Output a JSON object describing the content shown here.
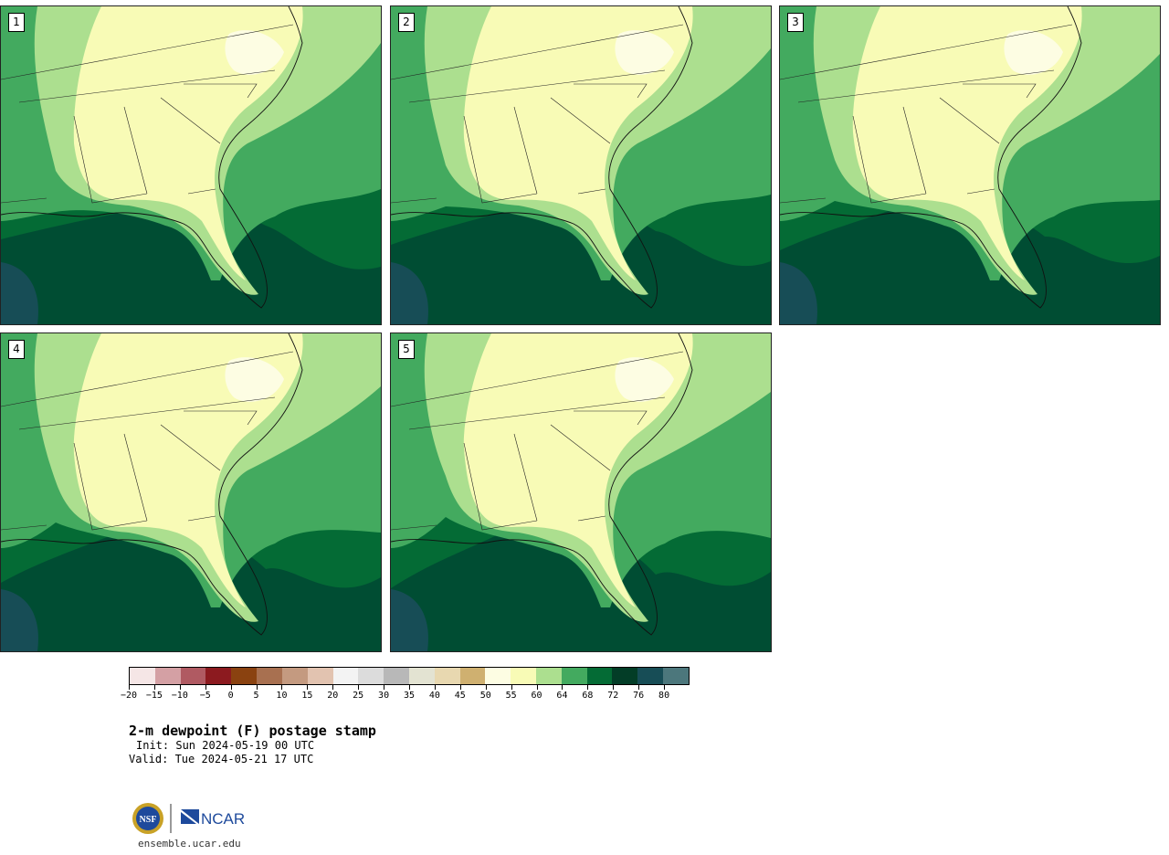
{
  "panels": [
    {
      "number": "1"
    },
    {
      "number": "2"
    },
    {
      "number": "3"
    },
    {
      "number": "4"
    },
    {
      "number": "5"
    }
  ],
  "colorbar": {
    "colors": [
      "#f5e6e6",
      "#d4a0a4",
      "#b05a62",
      "#8c1a1f",
      "#8a4210",
      "#a87050",
      "#c49a80",
      "#e2c3b0",
      "#f3f3f3",
      "#dcdcdc",
      "#b8b8b8",
      "#e3e3d2",
      "#e8d8b0",
      "#cfb070",
      "#fdfde3",
      "#f8fbb6",
      "#acdf8f",
      "#43aa5f",
      "#046b35",
      "#033d27",
      "#174d56",
      "#4c777c"
    ],
    "tick_labels": [
      "−20",
      "−15",
      "−10",
      "−5",
      "0",
      "5",
      "10",
      "15",
      "20",
      "25",
      "30",
      "35",
      "40",
      "45",
      "50",
      "55",
      "60",
      "64",
      "68",
      "72",
      "76",
      "80"
    ]
  },
  "title": "2-m dewpoint (F) postage stamp",
  "init_line": "Init: Sun 2024-05-19 00 UTC",
  "valid_line": "Valid: Tue 2024-05-21 17 UTC",
  "logo": {
    "nsf_label": "NSF",
    "ncar_label": "NCAR"
  },
  "site": "ensemble.ucar.edu",
  "map_colors": {
    "deep_ocean": "#004d33",
    "ocean": "#046b35",
    "humid": "#43aa5f",
    "mid": "#acdf8f",
    "dry": "#f8fbb6",
    "driest": "#fdfde3",
    "pool": "#174d56"
  }
}
